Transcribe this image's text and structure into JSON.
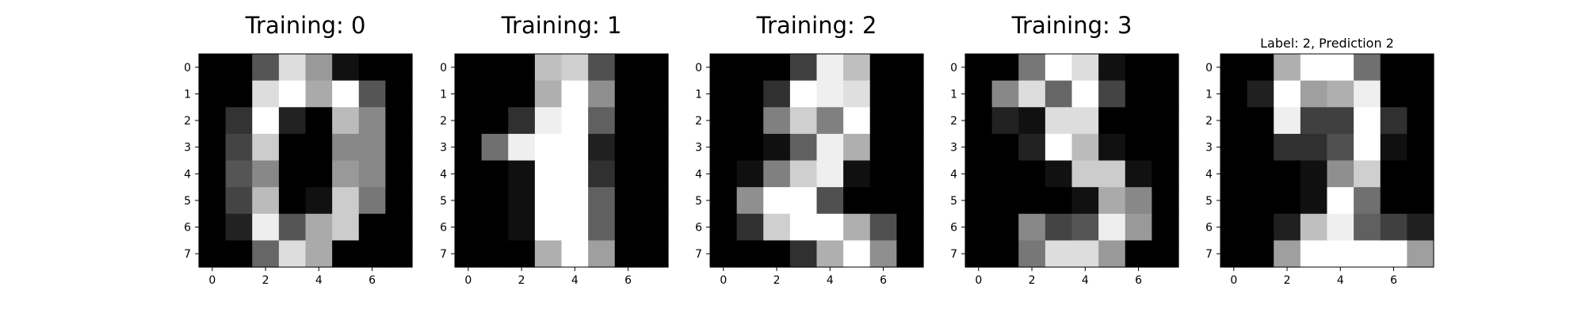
{
  "chart_data": [
    {
      "type": "heatmap",
      "title": "Training: 0",
      "colormap": "gray",
      "x_ticks": [
        "0",
        "2",
        "4",
        "6"
      ],
      "y_ticks": [
        "0",
        "1",
        "2",
        "3",
        "4",
        "5",
        "6",
        "7"
      ],
      "values": [
        [
          0,
          0,
          5,
          13,
          9,
          1,
          0,
          0
        ],
        [
          0,
          0,
          13,
          15,
          10,
          15,
          5,
          0
        ],
        [
          0,
          3,
          15,
          2,
          0,
          11,
          8,
          0
        ],
        [
          0,
          4,
          12,
          0,
          0,
          8,
          8,
          0
        ],
        [
          0,
          5,
          8,
          0,
          0,
          9,
          8,
          0
        ],
        [
          0,
          4,
          11,
          0,
          1,
          12,
          7,
          0
        ],
        [
          0,
          2,
          14,
          5,
          10,
          12,
          0,
          0
        ],
        [
          0,
          0,
          6,
          13,
          10,
          0,
          0,
          0
        ]
      ]
    },
    {
      "type": "heatmap",
      "title": "Training: 1",
      "colormap": "gray",
      "x_ticks": [
        "0",
        "2",
        "4",
        "6"
      ],
      "y_ticks": [
        "0",
        "1",
        "2",
        "3",
        "4",
        "5",
        "6",
        "7"
      ],
      "values": [
        [
          0,
          0,
          0,
          12,
          13,
          5,
          0,
          0
        ],
        [
          0,
          0,
          0,
          11,
          16,
          9,
          0,
          0
        ],
        [
          0,
          0,
          3,
          15,
          16,
          6,
          0,
          0
        ],
        [
          0,
          7,
          15,
          16,
          16,
          2,
          0,
          0
        ],
        [
          0,
          0,
          1,
          16,
          16,
          3,
          0,
          0
        ],
        [
          0,
          0,
          1,
          16,
          16,
          6,
          0,
          0
        ],
        [
          0,
          0,
          1,
          16,
          16,
          6,
          0,
          0
        ],
        [
          0,
          0,
          0,
          11,
          16,
          10,
          0,
          0
        ]
      ]
    },
    {
      "type": "heatmap",
      "title": "Training: 2",
      "colormap": "gray",
      "x_ticks": [
        "0",
        "2",
        "4",
        "6"
      ],
      "y_ticks": [
        "0",
        "1",
        "2",
        "3",
        "4",
        "5",
        "6",
        "7"
      ],
      "values": [
        [
          0,
          0,
          0,
          4,
          15,
          12,
          0,
          0
        ],
        [
          0,
          0,
          3,
          16,
          15,
          14,
          0,
          0
        ],
        [
          0,
          0,
          8,
          13,
          8,
          16,
          0,
          0
        ],
        [
          0,
          0,
          1,
          6,
          15,
          11,
          0,
          0
        ],
        [
          0,
          1,
          8,
          13,
          15,
          1,
          0,
          0
        ],
        [
          0,
          9,
          16,
          16,
          5,
          0,
          0,
          0
        ],
        [
          0,
          3,
          13,
          16,
          16,
          11,
          5,
          0
        ],
        [
          0,
          0,
          0,
          3,
          11,
          16,
          9,
          0
        ]
      ]
    },
    {
      "type": "heatmap",
      "title": "Training: 3",
      "colormap": "gray",
      "x_ticks": [
        "0",
        "2",
        "4",
        "6"
      ],
      "y_ticks": [
        "0",
        "1",
        "2",
        "3",
        "4",
        "5",
        "6",
        "7"
      ],
      "values": [
        [
          0,
          0,
          7,
          15,
          13,
          1,
          0,
          0
        ],
        [
          0,
          8,
          13,
          6,
          15,
          4,
          0,
          0
        ],
        [
          0,
          2,
          1,
          13,
          13,
          0,
          0,
          0
        ],
        [
          0,
          0,
          2,
          15,
          11,
          1,
          0,
          0
        ],
        [
          0,
          0,
          0,
          1,
          12,
          12,
          1,
          0
        ],
        [
          0,
          0,
          0,
          0,
          1,
          10,
          8,
          0
        ],
        [
          0,
          0,
          8,
          4,
          5,
          14,
          9,
          0
        ],
        [
          0,
          0,
          7,
          13,
          13,
          9,
          0,
          0
        ]
      ]
    },
    {
      "type": "heatmap",
      "title": "Label: 2, Prediction 2",
      "colormap": "gray",
      "x_ticks": [
        "0",
        "2",
        "4",
        "6"
      ],
      "y_ticks": [
        "0",
        "1",
        "2",
        "3",
        "4",
        "5",
        "6",
        "7"
      ],
      "values": [
        [
          0,
          0,
          11,
          16,
          16,
          7,
          0,
          0
        ],
        [
          0,
          2,
          16,
          10,
          11,
          15,
          0,
          0
        ],
        [
          0,
          0,
          15,
          4,
          4,
          16,
          3,
          0
        ],
        [
          0,
          0,
          3,
          3,
          5,
          16,
          1,
          0
        ],
        [
          0,
          0,
          0,
          1,
          9,
          13,
          0,
          0
        ],
        [
          0,
          0,
          0,
          1,
          16,
          7,
          0,
          0
        ],
        [
          0,
          0,
          2,
          12,
          15,
          6,
          4,
          2
        ],
        [
          0,
          0,
          10,
          16,
          16,
          16,
          16,
          10
        ]
      ]
    }
  ]
}
